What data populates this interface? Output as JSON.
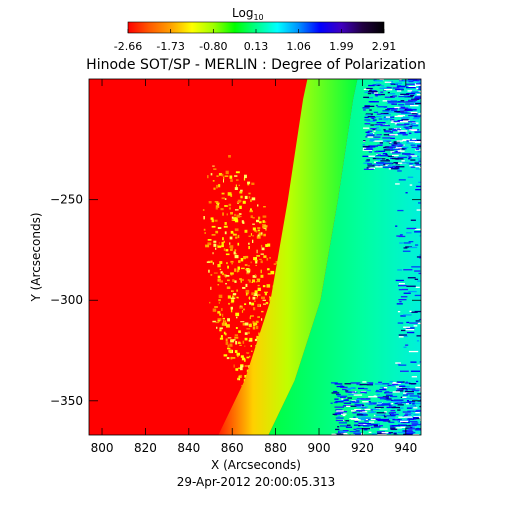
{
  "chart_data": {
    "type": "heatmap",
    "title": "Hinode SOT/SP - MERLIN : Degree of Polarization",
    "xlabel": "X (Arcseconds)",
    "ylabel": "Y (Arcseconds)",
    "timestamp": "29-Apr-2012 20:00:05.313",
    "colorbar": {
      "label_base": "Log",
      "label_sub": "10",
      "ticks": [
        "-2.66",
        "-1.73",
        "-0.80",
        "0.13",
        "1.06",
        "1.99",
        "2.91"
      ],
      "range": [
        -2.66,
        2.91
      ],
      "colormap": [
        "#ff0000",
        "#ff5a00",
        "#ffa000",
        "#ffff00",
        "#a0ff00",
        "#00ff00",
        "#00ff88",
        "#00ffff",
        "#0090ff",
        "#0000ff",
        "#4000c0",
        "#200040",
        "#000000"
      ]
    },
    "xlim": [
      794,
      947
    ],
    "ylim": [
      -367,
      -190
    ],
    "xticks": [
      800,
      820,
      840,
      860,
      880,
      900,
      920,
      940
    ],
    "yticks": [
      -250,
      -300,
      -350
    ],
    "limb": {
      "description_free": true,
      "points": [
        [
          873,
          -367
        ],
        [
          885,
          -340
        ],
        [
          897,
          -300
        ],
        [
          905,
          -250
        ],
        [
          912,
          -200
        ],
        [
          914,
          -190
        ]
      ]
    },
    "regions": {
      "disk_value": -2.66,
      "limb_band_value": -0.9,
      "off_limb_value": 0.3,
      "noise_value": 1.6
    }
  }
}
